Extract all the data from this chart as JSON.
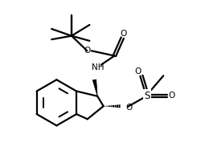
{
  "background_color": "#ffffff",
  "line_color": "#000000",
  "line_width": 1.6,
  "fig_width": 2.5,
  "fig_height": 2.08,
  "dpi": 100,
  "xlim": [
    0,
    10
  ],
  "ylim": [
    0,
    8.32
  ]
}
